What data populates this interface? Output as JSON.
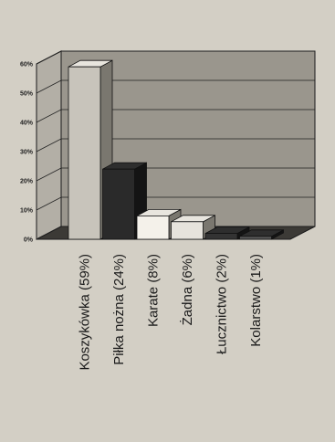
{
  "chart_data": {
    "type": "bar",
    "title": "",
    "xlabel": "",
    "ylabel": "",
    "categories": [
      "Koszykówka (59%)",
      "Piłka nożna (24%)",
      "Karate (8%)",
      "Żadna (6%)",
      "Łucznictwo (2%)",
      "Kolarstwo (1%)"
    ],
    "values": [
      59,
      24,
      8,
      6,
      2,
      1
    ],
    "ylim": [
      0,
      60
    ],
    "yticks": [
      "0%",
      "10%",
      "20%",
      "30%",
      "40%",
      "50%",
      "60%"
    ],
    "bar_colors": [
      "#c8c4bb",
      "#2a2a2a",
      "#f4f1ea",
      "#e6e3dc",
      "#333333",
      "#555555"
    ],
    "grid": true,
    "legend": "none",
    "style": "3d-column"
  }
}
